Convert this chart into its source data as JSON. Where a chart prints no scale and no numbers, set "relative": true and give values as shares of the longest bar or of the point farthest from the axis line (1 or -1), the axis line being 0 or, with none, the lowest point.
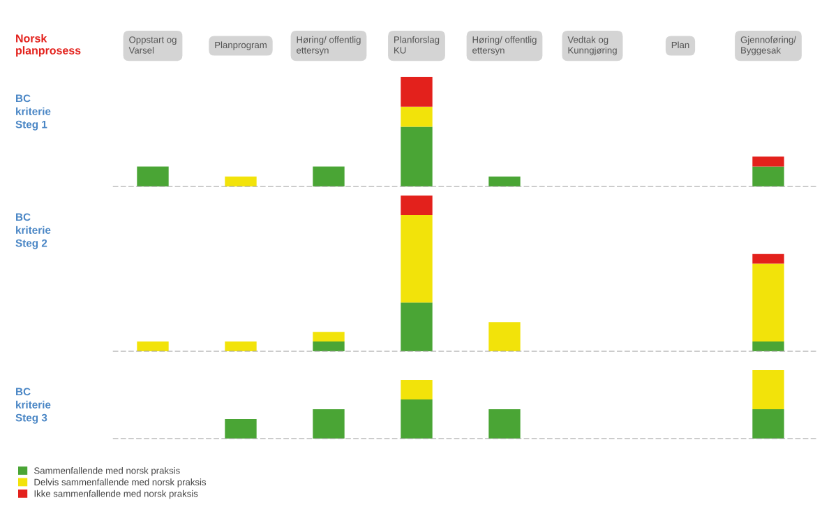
{
  "chart_data": [
    {
      "type": "bar",
      "title": "BC\nkriterie\nSteg 1",
      "annotations": [
        "Norsk\nplanprosess"
      ],
      "categories": [
        "Oppstart og\nVarsel",
        "Planprogram",
        "Høring/ offentlig\nettersyn",
        "Planforslag\nKU",
        "Høring/ offentlig\nettersyn",
        "Vedtak og\nKunngjøring",
        "Plan",
        "Gjennoføring/\nByggesak"
      ],
      "relative": true,
      "stacked": true,
      "tick_labels": "x",
      "grid": false,
      "legend": false,
      "series": [
        {
          "color": "#4aa535",
          "values": [
            0.182,
            null,
            0.182,
            0.545,
            0.091,
            null,
            null,
            0.182
          ]
        },
        {
          "color": "#f2e30a",
          "values": [
            null,
            0.091,
            null,
            0.182,
            null,
            null,
            null,
            null
          ]
        },
        {
          "color": "#e3211c",
          "values": [
            null,
            null,
            null,
            0.273,
            null,
            null,
            null,
            0.091
          ]
        }
      ]
    },
    {
      "type": "bar",
      "title": "BC\nkriterie\nSteg 2",
      "categories": [
        null,
        null,
        null,
        null,
        null,
        null,
        null,
        null
      ],
      "relative": true,
      "stacked": true,
      "tick_labels": false,
      "grid": false,
      "legend": false,
      "series": [
        {
          "color": "#4aa535",
          "values": [
            null,
            null,
            0.0625,
            0.3125,
            null,
            null,
            null,
            0.0625
          ]
        },
        {
          "color": "#f2e30a",
          "values": [
            0.0625,
            0.0625,
            0.0625,
            0.5625,
            0.1875,
            null,
            null,
            0.5
          ]
        },
        {
          "color": "#e3211c",
          "values": [
            null,
            null,
            null,
            0.125,
            null,
            null,
            null,
            0.0625
          ]
        }
      ]
    },
    {
      "type": "bar",
      "title": "BC\nkriterie\nSteg 3",
      "categories": [
        null,
        null,
        null,
        null,
        null,
        null,
        null,
        null
      ],
      "relative": true,
      "stacked": true,
      "tick_labels": false,
      "grid": false,
      "legend": "bottom left",
      "series": [
        {
          "name": "Sammenfallende med norsk praksis",
          "color": "#4aa535",
          "values": [
            null,
            0.286,
            0.429,
            0.571,
            0.429,
            null,
            null,
            0.429
          ]
        },
        {
          "name": "Delvis sammenfallende med norsk praksis",
          "color": "#f2e30a",
          "values": [
            null,
            null,
            null,
            0.286,
            null,
            null,
            null,
            0.571
          ]
        },
        {
          "name": "Ikke sammenfallende med norsk praksis",
          "color": "#e3211c",
          "values": [
            null,
            null,
            null,
            null,
            null,
            null,
            null,
            null
          ]
        }
      ]
    }
  ]
}
